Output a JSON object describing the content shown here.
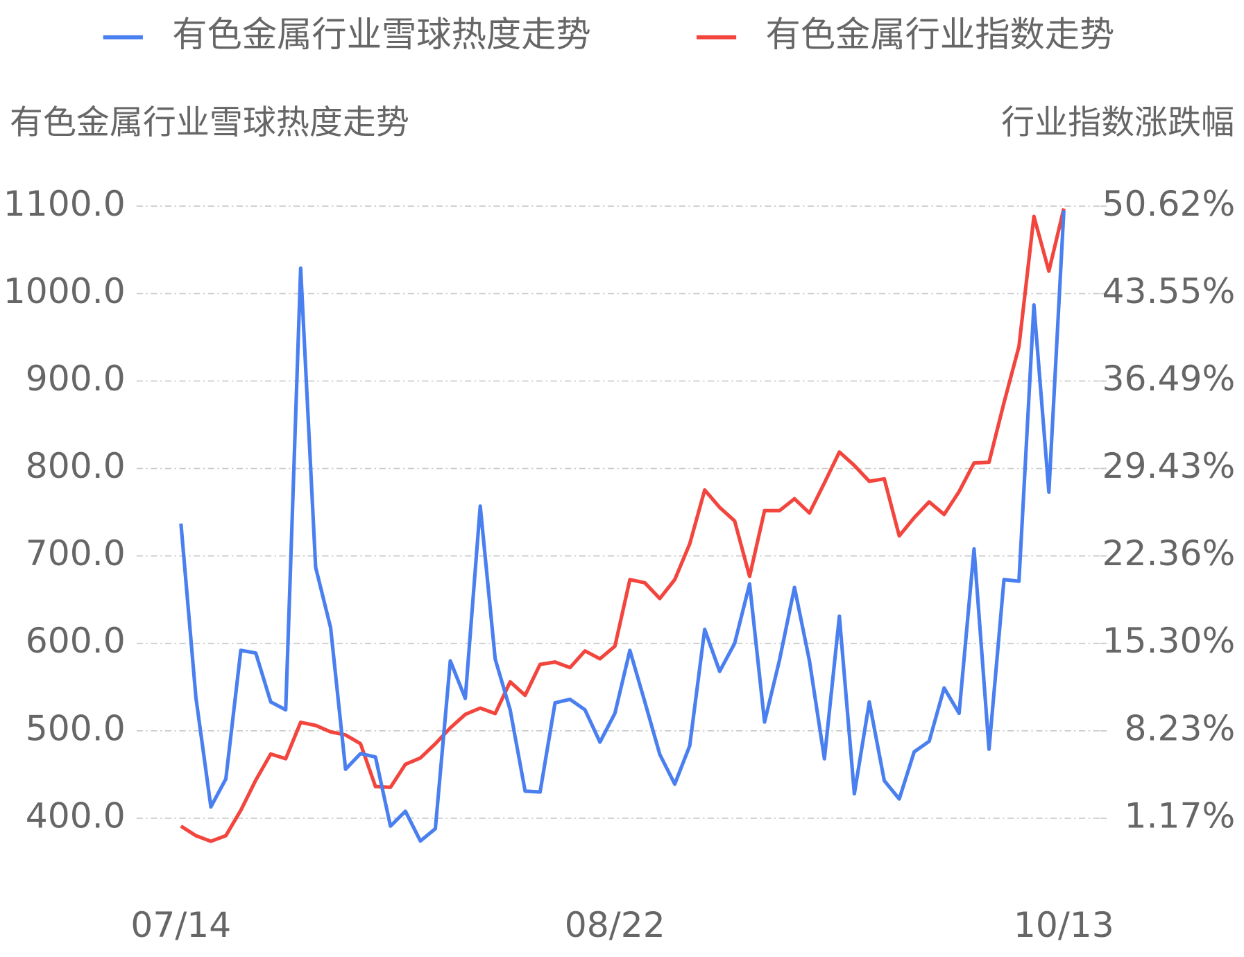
{
  "chart_data": {
    "type": "line",
    "y_label": "有色金属行业雪球热度走势",
    "y2_label": "行业指数涨跌幅",
    "categories": [
      "07/14",
      null,
      null,
      null,
      null,
      null,
      null,
      null,
      null,
      null,
      null,
      null,
      null,
      null,
      null,
      null,
      null,
      null,
      null,
      null,
      null,
      null,
      null,
      null,
      null,
      null,
      null,
      null,
      null,
      "08/22",
      null,
      null,
      null,
      null,
      null,
      null,
      null,
      null,
      null,
      null,
      null,
      null,
      null,
      null,
      null,
      null,
      null,
      null,
      null,
      null,
      null,
      null,
      null,
      null,
      null,
      null,
      null,
      null,
      null,
      "10/13"
    ],
    "series": [
      {
        "name": "有色金属行业雪球热度走势",
        "color": "#4a7ff0",
        "axis": "y",
        "values": [
          737,
          538,
          413,
          445,
          592,
          589,
          533,
          524,
          1029,
          687,
          618,
          456,
          474,
          470,
          391,
          408,
          374,
          388,
          580,
          537,
          757,
          582,
          524,
          431,
          430,
          532,
          536,
          524,
          487,
          520,
          592,
          533,
          473,
          439,
          483,
          616,
          568,
          600,
          668,
          510,
          581,
          664,
          580,
          468,
          631,
          428,
          533,
          443,
          422,
          476,
          488,
          549,
          520,
          708,
          479,
          673,
          671,
          987,
          773,
          1095
        ]
      },
      {
        "name": "有色金属行业指数走势",
        "color": "#f2453d",
        "axis": "y2",
        "values": [
          0.53,
          -0.24,
          -0.69,
          -0.24,
          1.81,
          4.25,
          6.36,
          5.98,
          8.92,
          8.67,
          8.15,
          7.9,
          7.19,
          3.73,
          3.67,
          5.53,
          6.04,
          7.19,
          8.47,
          9.56,
          10.07,
          9.63,
          12.19,
          11.1,
          13.6,
          13.79,
          13.34,
          14.69,
          14.05,
          15.07,
          20.45,
          20.19,
          18.92,
          20.45,
          23.34,
          27.69,
          26.28,
          25.19,
          20.71,
          26.02,
          26.02,
          26.98,
          25.83,
          28.26,
          30.76,
          29.67,
          28.39,
          28.59,
          23.98,
          25.45,
          26.73,
          25.71,
          27.56,
          29.87,
          29.93,
          34.74,
          39.28,
          49.79,
          45.37,
          50.43
        ]
      }
    ],
    "ylim": [
      400,
      1100
    ],
    "yticks": [
      {
        "value": 400,
        "label": "400.0"
      },
      {
        "value": 500,
        "label": "500.0"
      },
      {
        "value": 600,
        "label": "600.0"
      },
      {
        "value": 700,
        "label": "700.0"
      },
      {
        "value": 800,
        "label": "800.0"
      },
      {
        "value": 900,
        "label": "900.0"
      },
      {
        "value": 1000,
        "label": "1000.0"
      },
      {
        "value": 1100,
        "label": "1100.0"
      }
    ],
    "y2lim": [
      1.17,
      50.62
    ],
    "y2ticks": [
      {
        "value": 1.17,
        "label": "1.17%"
      },
      {
        "value": 8.23,
        "label": "8.23%"
      },
      {
        "value": 15.3,
        "label": "15.30%"
      },
      {
        "value": 22.36,
        "label": "22.36%"
      },
      {
        "value": 29.43,
        "label": "29.43%"
      },
      {
        "value": 36.49,
        "label": "36.49%"
      },
      {
        "value": 43.55,
        "label": "43.55%"
      },
      {
        "value": 50.62,
        "label": "50.62%"
      }
    ],
    "grid": true,
    "legend": "top"
  }
}
